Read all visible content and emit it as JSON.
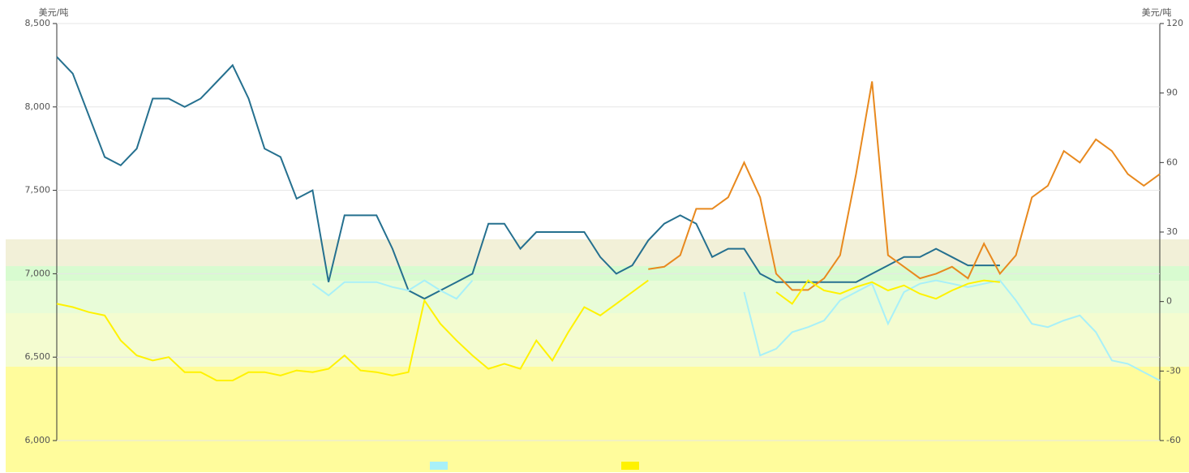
{
  "chart_data": {
    "type": "line",
    "y_label": "美元/吨",
    "y2_label": "美元/吨",
    "categories": [
      null,
      null,
      null,
      null,
      null,
      null,
      null,
      null,
      null,
      null,
      null,
      null,
      null,
      null,
      null,
      null,
      null,
      null,
      null,
      null,
      null,
      null,
      null,
      null,
      null,
      null,
      null,
      null,
      null,
      null,
      null,
      null,
      null,
      null,
      null,
      null,
      null,
      null,
      null,
      null,
      null,
      null,
      null,
      null,
      null,
      null,
      null,
      null,
      null,
      null,
      null,
      null,
      null,
      null,
      null,
      null,
      null,
      null,
      null,
      null,
      null,
      null,
      null,
      null,
      null,
      null,
      null,
      null,
      null,
      null
    ],
    "ylim": [
      6000,
      8500
    ],
    "yticks": [
      {
        "value": 6000,
        "label": "6,000"
      },
      {
        "value": 6500,
        "label": "6,500"
      },
      {
        "value": 7000,
        "label": "7,000"
      },
      {
        "value": 7500,
        "label": "7,500"
      },
      {
        "value": 8000,
        "label": "8,000"
      },
      {
        "value": 8500,
        "label": "8,500"
      }
    ],
    "y2lim": [
      -60,
      120
    ],
    "y2ticks": [
      -60,
      -30,
      0,
      30,
      60,
      90,
      120
    ],
    "grid": true,
    "series": [
      {
        "color": "#25708f",
        "values": [
          8300,
          8200,
          7950,
          7700,
          7650,
          7750,
          8050,
          8050,
          8000,
          8050,
          8150,
          8250,
          8050,
          7750,
          7700,
          7450,
          7500,
          6950,
          7350,
          7350,
          7350,
          7150,
          6900,
          6850,
          6900,
          6950,
          7000,
          7300,
          7300,
          7150,
          7250,
          7250,
          7250,
          7250,
          7100,
          7000,
          7050,
          7200,
          7300,
          7350,
          7300,
          7100,
          7150,
          7150,
          7000,
          6950,
          6950,
          6950,
          6950,
          6950,
          6950,
          7000,
          7050,
          7100,
          7100,
          7150,
          7100,
          7050,
          7050,
          7050,
          null,
          null,
          null,
          null,
          null,
          null,
          null,
          null,
          null,
          null
        ]
      },
      {
        "color": "#e8891e",
        "axis": "y2",
        "values": [
          null,
          null,
          null,
          null,
          null,
          null,
          null,
          null,
          null,
          null,
          null,
          null,
          null,
          null,
          null,
          null,
          null,
          null,
          null,
          null,
          null,
          null,
          null,
          null,
          null,
          null,
          null,
          null,
          null,
          null,
          null,
          null,
          null,
          null,
          null,
          null,
          null,
          14,
          15,
          20,
          40,
          40,
          45,
          60,
          45,
          12,
          5,
          5,
          10,
          20,
          55,
          95,
          20,
          15,
          10,
          12,
          15,
          10,
          25,
          12,
          20,
          45,
          50,
          65,
          60,
          70,
          65,
          55,
          50,
          55
        ]
      },
      {
        "color": "#a8f0f8",
        "values": [
          null,
          null,
          null,
          null,
          null,
          null,
          null,
          null,
          null,
          null,
          null,
          null,
          null,
          null,
          null,
          null,
          6940,
          6870,
          6950,
          6950,
          6950,
          6920,
          6900,
          6960,
          6900,
          6850,
          6960,
          null,
          null,
          null,
          null,
          null,
          null,
          null,
          null,
          null,
          null,
          null,
          null,
          null,
          null,
          null,
          null,
          6890,
          6510,
          6550,
          6650,
          6680,
          6720,
          6840,
          6890,
          6940,
          6700,
          6890,
          6940,
          6960,
          6940,
          6920,
          6940,
          6960,
          6840,
          6700,
          6680,
          6720,
          6750,
          6650,
          6480,
          6460,
          6410,
          6360
        ]
      },
      {
        "color": "#fff200",
        "values": [
          6820,
          6800,
          6770,
          6750,
          6600,
          6510,
          6480,
          6500,
          6410,
          6410,
          6360,
          6360,
          6410,
          6410,
          6390,
          6420,
          6410,
          6430,
          6510,
          6420,
          6410,
          6390,
          6410,
          6840,
          6700,
          6600,
          6510,
          6430,
          6460,
          6430,
          6600,
          6480,
          6650,
          6800,
          6750,
          6820,
          6890,
          6960,
          null,
          null,
          null,
          null,
          null,
          null,
          null,
          6890,
          6820,
          6960,
          6900,
          6880,
          6920,
          6950,
          6900,
          6930,
          6880,
          6850,
          6900,
          6940,
          6960,
          6950,
          null,
          null,
          null,
          null,
          null,
          null,
          null,
          null,
          null,
          null
        ]
      }
    ]
  }
}
